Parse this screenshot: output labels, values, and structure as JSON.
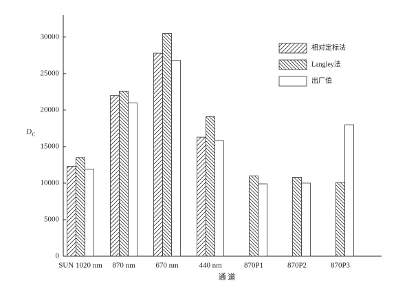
{
  "chart_data": {
    "type": "bar",
    "x_label": "通 道",
    "y_label": "D",
    "y_label_sub": "C",
    "categories": [
      "SUN  1020  nm",
      "870  nm",
      "670  nm",
      "440  nm",
      "870P1",
      "870P2",
      "870P3"
    ],
    "series": [
      {
        "name": "相对定标法",
        "color": "#ffffff",
        "hatch": "forward",
        "values": [
          12300,
          22000,
          27800,
          16300,
          null,
          null,
          null
        ]
      },
      {
        "name": "Langley法",
        "color": "#ffffff",
        "hatch": "backward",
        "values": [
          13500,
          22600,
          30500,
          19100,
          11000,
          10800,
          10100
        ]
      },
      {
        "name": "出厂值",
        "color": "#ffffff",
        "values": [
          11900,
          21000,
          26800,
          15800,
          9900,
          10000,
          18000
        ]
      }
    ],
    "ylim": [
      0,
      33000
    ],
    "yticks": [
      0,
      5000,
      10000,
      15000,
      20000,
      25000,
      30000
    ],
    "legend": "upper-right"
  }
}
